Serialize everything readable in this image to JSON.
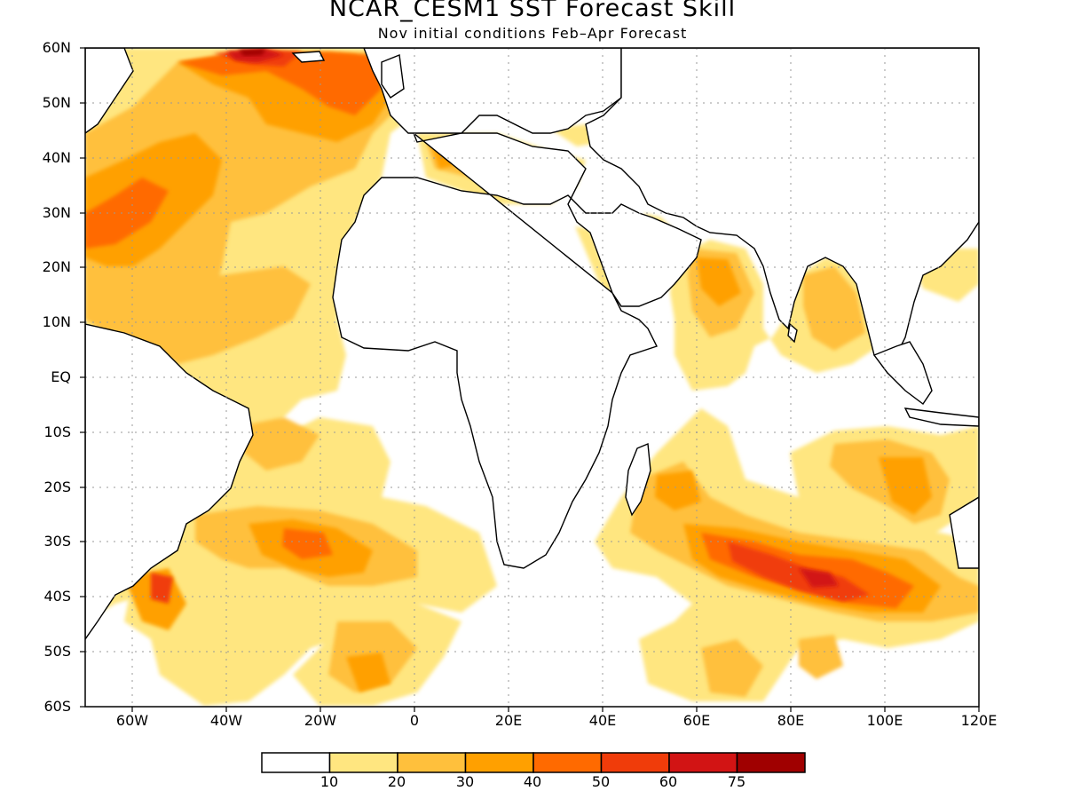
{
  "title": "NCAR_CESM1 SST Forecast Skill",
  "subtitle": "Nov initial conditions  Feb–Apr Forecast",
  "map": {
    "lon_range": [
      -70,
      120
    ],
    "lat_range": [
      -60,
      60
    ],
    "lat_labels": [
      "60N",
      "50N",
      "40N",
      "30N",
      "20N",
      "10N",
      "EQ",
      "10S",
      "20S",
      "30S",
      "40S",
      "50S",
      "60S"
    ],
    "lon_labels": [
      "60W",
      "40W",
      "20W",
      "0",
      "20E",
      "40E",
      "60E",
      "80E",
      "100E",
      "120E"
    ],
    "grid": true,
    "land_color": "#ffffff",
    "coastline_color": "#000000"
  },
  "colorbar": {
    "colors": [
      "#ffffff",
      "#ffe680",
      "#ffc03c",
      "#ffa000",
      "#ff6a00",
      "#f03c0a",
      "#d21414",
      "#a00000"
    ],
    "labels": [
      "10",
      "20",
      "30",
      "40",
      "50",
      "60",
      "75"
    ]
  }
}
